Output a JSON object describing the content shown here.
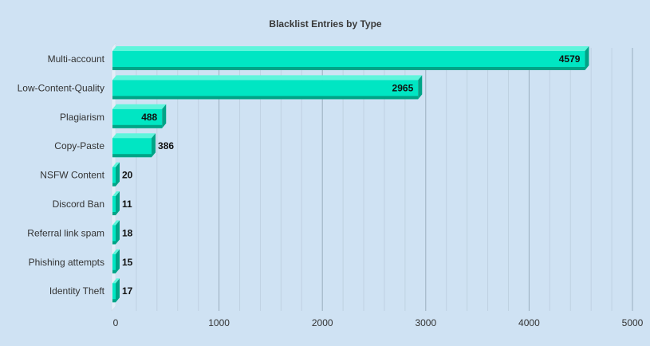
{
  "chart_data": {
    "type": "bar",
    "orientation": "horizontal",
    "title": "Blacklist Entries by Type",
    "xlabel": "",
    "ylabel": "",
    "categories": [
      "Multi-account",
      "Low-Content-Quality",
      "Plagiarism",
      "Copy-Paste",
      "NSFW Content",
      "Discord Ban",
      "Referral link spam",
      "Phishing attempts",
      "Identity Theft"
    ],
    "values": [
      4579,
      2965,
      488,
      386,
      20,
      11,
      18,
      15,
      17
    ],
    "xlim": [
      0,
      5000
    ],
    "xticks": [
      "0",
      "1000",
      "2000",
      "3000",
      "4000",
      "5000"
    ],
    "grid": true,
    "data_labels": true,
    "legend": "none",
    "colors": {
      "background": "#cfe2f3",
      "bar_front": "#00e6c3",
      "bar_top": "#5ff5dc",
      "bar_side": "#00a487",
      "bar_bottom": "#00a487",
      "grid_major": "#9aaebf",
      "grid_minor": "#bfd1e2",
      "axis_wall": "#e4eef8",
      "text": "#333333"
    }
  }
}
